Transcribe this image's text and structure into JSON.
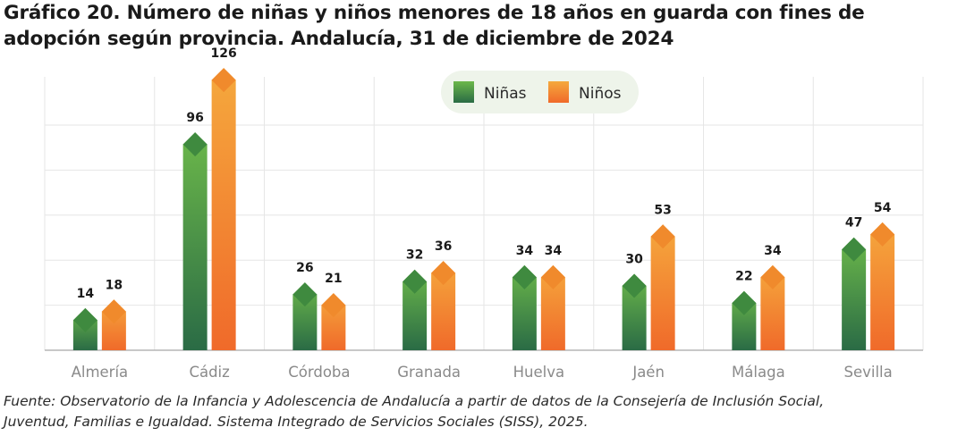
{
  "title_line1": "Gráfico 20. Número de niñas y niños menores de 18 años en guarda con fines de",
  "title_line2": "adopción según provincia. Andalucía, 31 de diciembre de 2024",
  "source_line1": "Fuente: Observatorio de la Infancia y Adolescencia de Andalucía a partir de datos de la Consejería de Inclusión Social,",
  "source_line2": "Juventud, Familias e Igualdad. Sistema Integrado de Servicios Sociales (SISS), 2025.",
  "colors": {
    "ninas_top": "#6cb84a",
    "ninas_bottom": "#2a6b45",
    "ninos_top": "#f5a93d",
    "ninos_bottom": "#f06a2a",
    "ninas_diamond": "#3f8a3f",
    "ninos_diamond": "#f08a2c",
    "grid": "#e6e6e6",
    "legend_bg": "#eef4ea"
  },
  "chart_data": {
    "type": "bar",
    "title": "Número de niñas y niños menores de 18 años en guarda con fines de adopción según provincia. Andalucía, 31 de diciembre de 2024",
    "categories": [
      "Almería",
      "Cádiz",
      "Córdoba",
      "Granada",
      "Huelva",
      "Jaén",
      "Málaga",
      "Sevilla"
    ],
    "series": [
      {
        "name": "Niñas",
        "values": [
          14,
          96,
          26,
          32,
          34,
          30,
          22,
          47
        ]
      },
      {
        "name": "Niños",
        "values": [
          18,
          126,
          21,
          36,
          34,
          53,
          34,
          54
        ]
      }
    ],
    "xlabel": "",
    "ylabel": "",
    "ylim": [
      0,
      130
    ],
    "grid": true,
    "legend_position": "top-right"
  }
}
